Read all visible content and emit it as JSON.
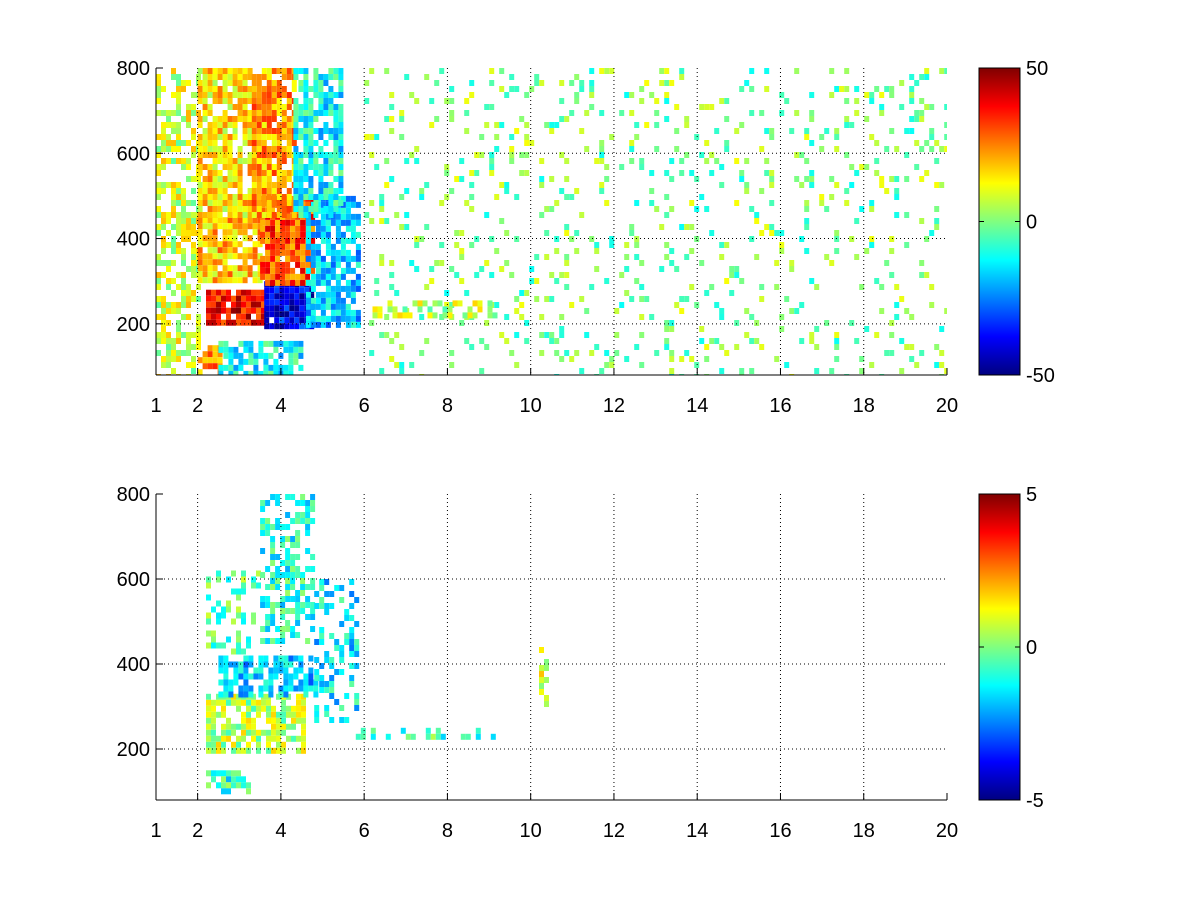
{
  "chart_data": [
    {
      "type": "heatmap",
      "title": "",
      "xlabel": "",
      "ylabel": "",
      "xlim": [
        1,
        20
      ],
      "ylim": [
        80,
        800
      ],
      "xticks": [
        1,
        2,
        4,
        6,
        8,
        10,
        12,
        14,
        16,
        18,
        20
      ],
      "yticks": [
        200,
        400,
        600,
        800
      ],
      "grid": true,
      "colormap": "jet",
      "colorbar": {
        "range": [
          -50,
          50
        ],
        "ticks": [
          50,
          0,
          -50
        ],
        "placement": "right"
      },
      "regions": [
        {
          "x": [
            1.0,
            2.0
          ],
          "y": [
            80,
            800
          ],
          "value": 8,
          "density": 0.55
        },
        {
          "x": [
            2.0,
            2.5
          ],
          "y": [
            80,
            150
          ],
          "value": 25,
          "density": 0.85
        },
        {
          "x": [
            2.5,
            4.5
          ],
          "y": [
            80,
            160
          ],
          "value": -12,
          "density": 0.7
        },
        {
          "x": [
            2.2,
            3.6
          ],
          "y": [
            200,
            280
          ],
          "value": 38,
          "density": 0.95
        },
        {
          "x": [
            3.6,
            4.8
          ],
          "y": [
            200,
            300
          ],
          "value": -38,
          "density": 0.95
        },
        {
          "x": [
            2.0,
            3.5
          ],
          "y": [
            300,
            450
          ],
          "value": 18,
          "density": 0.85
        },
        {
          "x": [
            3.5,
            4.8
          ],
          "y": [
            300,
            500
          ],
          "value": 30,
          "density": 0.9
        },
        {
          "x": [
            4.6,
            5.9
          ],
          "y": [
            200,
            500
          ],
          "value": -18,
          "density": 0.75
        },
        {
          "x": [
            2.0,
            3.3
          ],
          "y": [
            450,
            800
          ],
          "value": 15,
          "density": 0.8
        },
        {
          "x": [
            3.3,
            4.3
          ],
          "y": [
            450,
            800
          ],
          "value": 22,
          "density": 0.85
        },
        {
          "x": [
            4.3,
            5.4
          ],
          "y": [
            450,
            800
          ],
          "value": -12,
          "density": 0.75
        },
        {
          "x": [
            6.0,
            20.0
          ],
          "y": [
            80,
            800
          ],
          "value": 0,
          "density": 0.13
        },
        {
          "x": [
            6.2,
            9.2
          ],
          "y": [
            225,
            255
          ],
          "value": 5,
          "density": 0.55
        }
      ]
    },
    {
      "type": "heatmap",
      "title": "",
      "xlabel": "",
      "ylabel": "",
      "xlim": [
        1,
        20
      ],
      "ylim": [
        80,
        800
      ],
      "xticks": [
        1,
        2,
        4,
        6,
        8,
        10,
        12,
        14,
        16,
        18,
        20
      ],
      "yticks": [
        200,
        400,
        600,
        800
      ],
      "grid": true,
      "colormap": "jet",
      "colorbar": {
        "range": [
          -5,
          5
        ],
        "ticks": [
          5,
          0,
          -5
        ],
        "placement": "right"
      },
      "regions": [
        {
          "x": [
            2.2,
            3.2
          ],
          "y": [
            100,
            150
          ],
          "value": -0.8,
          "density": 0.6
        },
        {
          "x": [
            2.2,
            4.6
          ],
          "y": [
            200,
            330
          ],
          "value": 0.5,
          "density": 0.7
        },
        {
          "x": [
            2.5,
            4.8
          ],
          "y": [
            330,
            420
          ],
          "value": -1.8,
          "density": 0.65
        },
        {
          "x": [
            2.2,
            3.5
          ],
          "y": [
            430,
            620
          ],
          "value": -0.3,
          "density": 0.35
        },
        {
          "x": [
            3.5,
            4.8
          ],
          "y": [
            450,
            800
          ],
          "value": -0.9,
          "density": 0.5
        },
        {
          "x": [
            4.8,
            5.8
          ],
          "y": [
            250,
            600
          ],
          "value": -1.4,
          "density": 0.4
        },
        {
          "x": [
            5.8,
            9.2
          ],
          "y": [
            225,
            250
          ],
          "value": -0.6,
          "density": 0.3
        },
        {
          "x": [
            10.2,
            10.4
          ],
          "y": [
            300,
            440
          ],
          "value": 1.0,
          "density": 0.5
        }
      ]
    }
  ]
}
